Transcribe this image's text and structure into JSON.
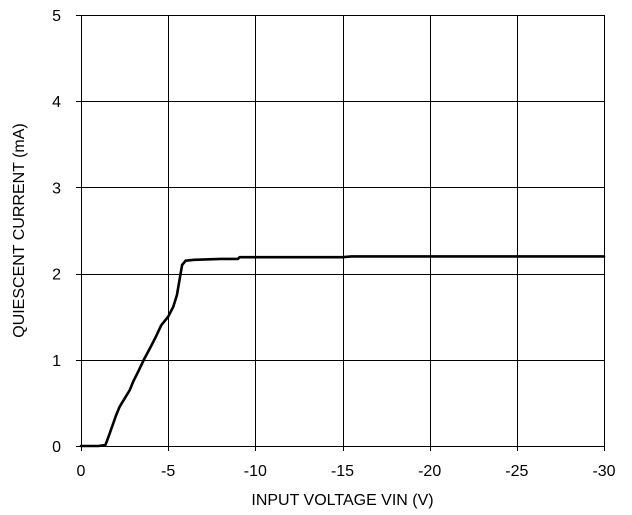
{
  "chart_data": {
    "type": "line",
    "title": "",
    "xlabel": "INPUT VOLTAGE VIN (V)",
    "ylabel": "QUIESCENT CURRENT (mA)",
    "xlim": [
      0,
      -30
    ],
    "ylim": [
      0,
      5
    ],
    "x_ticks": [
      0,
      -5,
      -10,
      -15,
      -20,
      -25,
      -30
    ],
    "x_tick_labels": [
      "0",
      "-5",
      "-10",
      "-15",
      "-20",
      "-25",
      "-30"
    ],
    "y_ticks": [
      0,
      1,
      2,
      3,
      4,
      5
    ],
    "y_tick_labels": [
      "0",
      "1",
      "2",
      "3",
      "4",
      "5"
    ],
    "grid": true,
    "series": [
      {
        "color": "#000000",
        "x": [
          0,
          -1.0,
          -1.4,
          -1.6,
          -2.0,
          -2.2,
          -2.5,
          -2.8,
          -3.0,
          -3.3,
          -3.6,
          -4.0,
          -4.3,
          -4.6,
          -5.0,
          -5.3,
          -5.5,
          -5.8,
          -6.0,
          -6.5,
          -8.0,
          -9.0,
          -9.1,
          -12.0,
          -15.0,
          -15.5,
          -20.0,
          -25.0,
          -30.0
        ],
        "y": [
          0,
          0,
          0.01,
          0.12,
          0.35,
          0.45,
          0.55,
          0.65,
          0.75,
          0.87,
          1.0,
          1.15,
          1.27,
          1.4,
          1.5,
          1.62,
          1.75,
          2.1,
          2.15,
          2.16,
          2.17,
          2.17,
          2.19,
          2.19,
          2.19,
          2.2,
          2.2,
          2.2,
          2.2
        ]
      }
    ]
  }
}
